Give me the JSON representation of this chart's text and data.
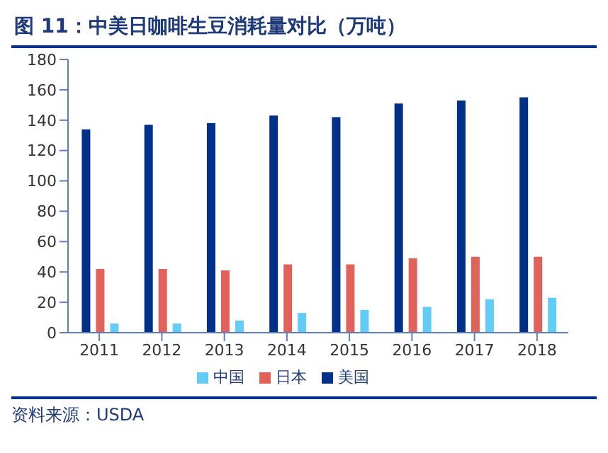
{
  "chart_data": {
    "type": "bar",
    "title": "图 11：中美日咖啡生豆消耗量对比（万吨）",
    "categories": [
      "2011",
      "2012",
      "2013",
      "2014",
      "2015",
      "2016",
      "2017",
      "2018"
    ],
    "series": [
      {
        "name": "美国",
        "color": "#003087",
        "values": [
          134,
          137,
          138,
          143,
          142,
          151,
          153,
          155
        ]
      },
      {
        "name": "日本",
        "color": "#e0625a",
        "values": [
          42,
          42,
          41,
          45,
          45,
          49,
          50,
          50
        ]
      },
      {
        "name": "中国",
        "color": "#63ccf5",
        "values": [
          6,
          6,
          8,
          13,
          15,
          17,
          22,
          23
        ]
      }
    ],
    "ylim": [
      0,
      180
    ],
    "yticks": [
      0,
      20,
      40,
      60,
      80,
      100,
      120,
      140,
      160,
      180
    ],
    "grid": false,
    "legend": "bottom",
    "annotations": [
      "资料来源：USDA"
    ]
  }
}
